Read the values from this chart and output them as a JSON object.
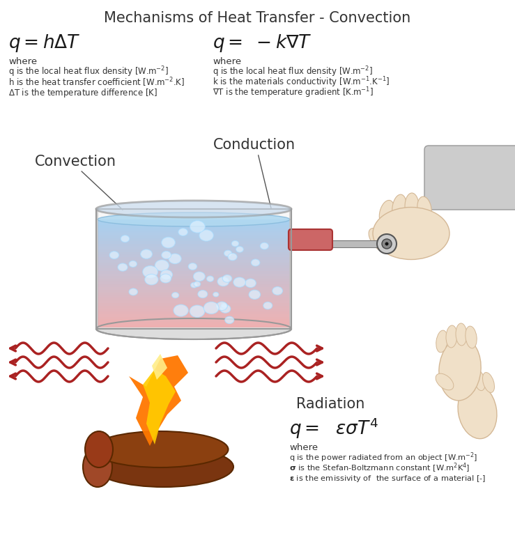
{
  "title": "Mechanisms of Heat Transfer - Convection",
  "title_fontsize": 15,
  "title_color": "#333333",
  "bg_color": "#ffffff",
  "convection_formula": "$q = h\\Delta T$",
  "convection_where": "where",
  "convection_line1": "q is the local heat flux density [W.m$^{-2}$]",
  "convection_line2": "h is the heat transfer coefficient [W.m$^{-2}$.K]",
  "convection_line3": "$\\Delta$T is the temperature difference [K]",
  "conduction_formula": "$q =\\ -k\\nabla T$",
  "conduction_where": "where",
  "conduction_line1": "q is the local heat flux density [W.m$^{-2}$]",
  "conduction_line2": "k is the materials conductivity [W.m$^{-1}$.K$^{-1}$]",
  "conduction_line3": "$\\nabla$T is the temperature gradient [K.m$^{-1}$]",
  "convection_label": "Convection",
  "conduction_label": "Conduction",
  "radiation_label": "Radiation",
  "radiation_formula": "$q =\\ \\ \\varepsilon\\sigma T^4$",
  "radiation_where": "where",
  "radiation_line1": "q is the power radiated from an object [W.m$^{-2}$]",
  "radiation_line2": "$\\mathbf{\\sigma}$ is the Stefan-Boltzmann constant [W.m$^{2}$K$^{4}$]",
  "radiation_line3": "$\\mathbf{\\varepsilon}$ is the emissivity of  the surface of a material [-]",
  "wave_color": "#aa2222",
  "pot_body_color": "#d8d8d8",
  "pot_edge_color": "#999999",
  "water_top_color": "#a8d8f0",
  "water_bottom_color": "#f0c0c0",
  "handle_color": "#cc6666",
  "handle_edge": "#aa3333",
  "flame_orange": "#ff8800",
  "flame_yellow": "#ffcc00",
  "log_color": "#8B4010",
  "log_dark": "#5a2800",
  "log_mid": "#7a3510",
  "bubble_color": "#c8e8ff",
  "bubble_edge": "#88bbee",
  "arrow_color": "#1a1a1a",
  "skin_color": "#f0e0c8",
  "skin_edge": "#d4b896",
  "sleeve_color": "#cccccc",
  "sleeve_edge": "#999999",
  "text_color": "#333333",
  "formula_color": "#1a1a1a",
  "label_arrow_color": "#555555"
}
